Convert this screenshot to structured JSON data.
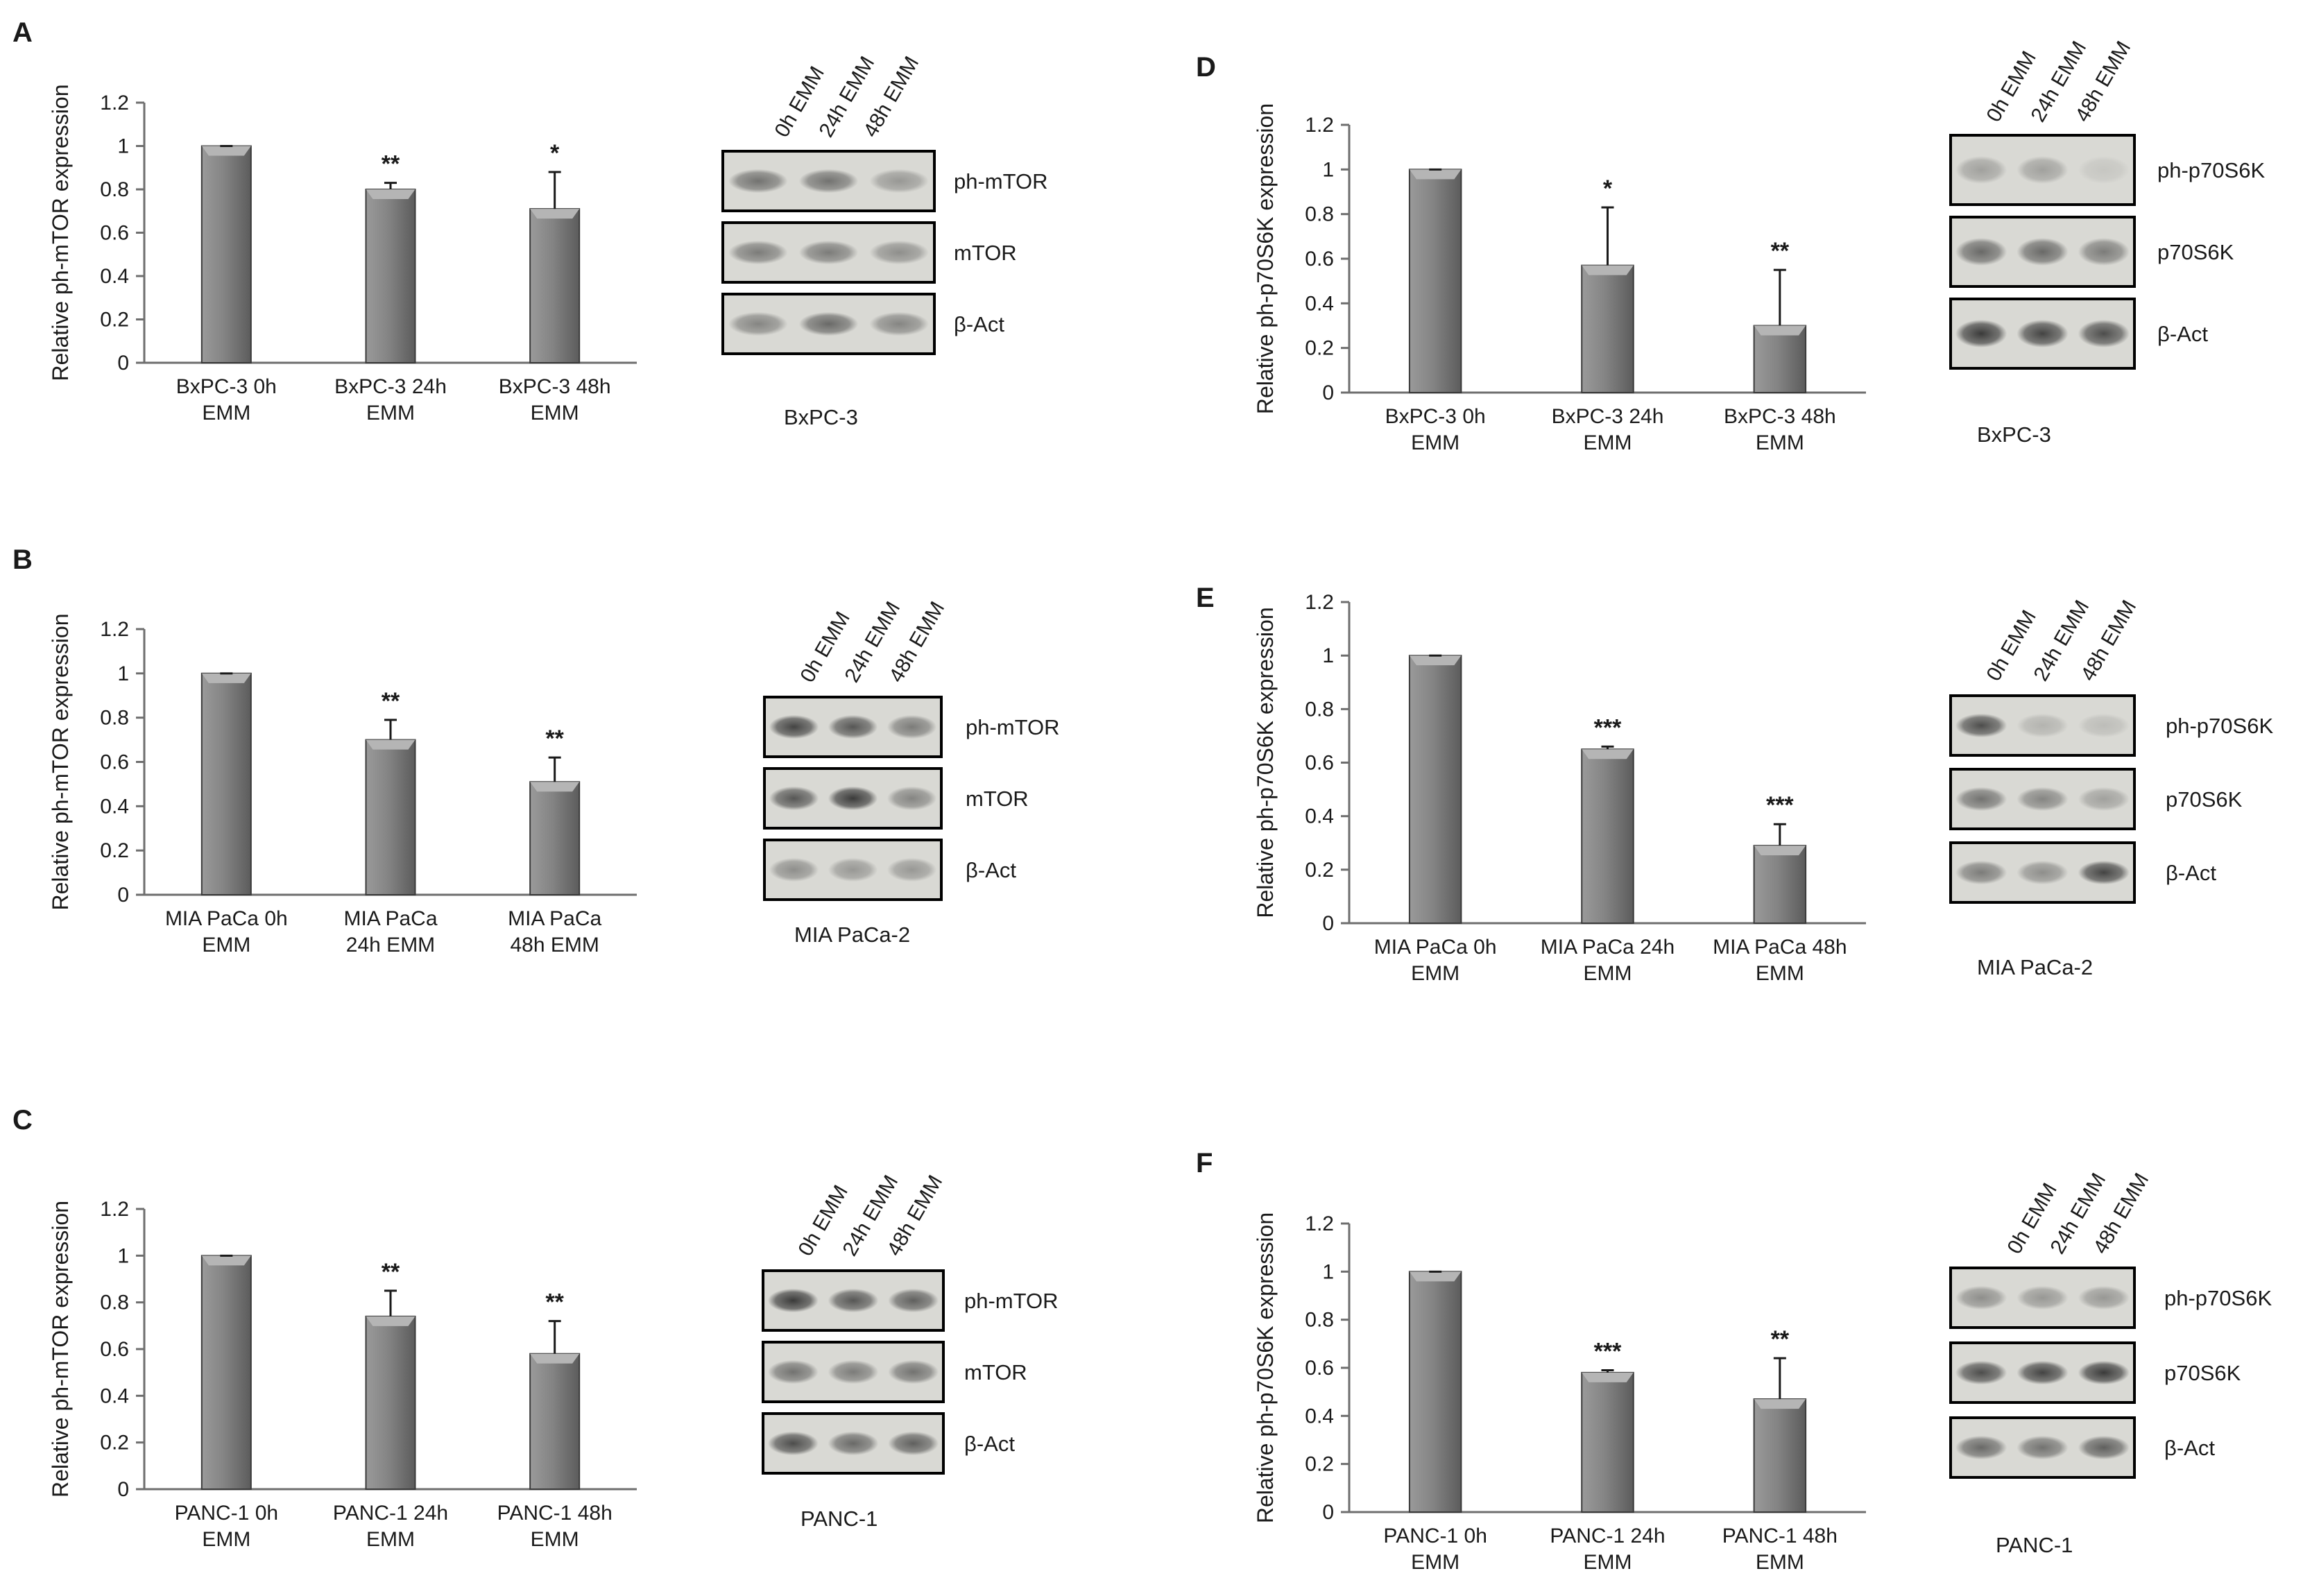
{
  "chart_data": [
    {
      "type": "bar",
      "panel": "A",
      "ylabel": "Relative ph-mTOR expression",
      "ylim": [
        0,
        1.2
      ],
      "yticks": [
        "0",
        "0.2",
        "0.4",
        "0.6",
        "0.8",
        "1",
        "1.2"
      ],
      "categories": [
        [
          "BxPC-3 0h",
          "EMM"
        ],
        [
          "BxPC-3 24h",
          "EMM"
        ],
        [
          "BxPC-3 48h",
          "EMM"
        ]
      ],
      "values": [
        1.0,
        0.8,
        0.71
      ],
      "errors": [
        0.0,
        0.03,
        0.17
      ],
      "significance": [
        "",
        "**",
        "*"
      ],
      "blot": {
        "lanes": [
          "0h EMM",
          "24h EMM",
          "48h EMM"
        ],
        "rows": [
          {
            "label": "ph-mTOR",
            "intensity": [
              0.55,
              0.55,
              0.35
            ]
          },
          {
            "label": "mTOR",
            "intensity": [
              0.5,
              0.5,
              0.4
            ]
          },
          {
            "label": "β-Act",
            "intensity": [
              0.45,
              0.6,
              0.45
            ]
          }
        ],
        "cell_line": "BxPC-3"
      }
    },
    {
      "type": "bar",
      "panel": "B",
      "ylabel": "Relative ph-mTOR expression",
      "ylim": [
        0,
        1.2
      ],
      "yticks": [
        "0",
        "0.2",
        "0.4",
        "0.6",
        "0.8",
        "1",
        "1.2"
      ],
      "categories": [
        [
          "MIA PaCa 0h",
          "EMM"
        ],
        [
          "MIA PaCa",
          "24h EMM"
        ],
        [
          "MIA PaCa",
          "48h EMM"
        ]
      ],
      "values": [
        1.0,
        0.7,
        0.51
      ],
      "errors": [
        0.0,
        0.09,
        0.11
      ],
      "significance": [
        "",
        "**",
        "**"
      ],
      "blot": {
        "lanes": [
          "0h EMM",
          "24h EMM",
          "48h EMM"
        ],
        "rows": [
          {
            "label": "ph-mTOR",
            "intensity": [
              0.8,
              0.7,
              0.5
            ]
          },
          {
            "label": "mTOR",
            "intensity": [
              0.7,
              0.85,
              0.45
            ]
          },
          {
            "label": "β-Act",
            "intensity": [
              0.4,
              0.35,
              0.35
            ]
          }
        ],
        "cell_line": "MIA PaCa-2"
      }
    },
    {
      "type": "bar",
      "panel": "C",
      "ylabel": "Relative ph-mTOR expression",
      "ylim": [
        0,
        1.2
      ],
      "yticks": [
        "0",
        "0.2",
        "0.4",
        "0.6",
        "0.8",
        "1",
        "1.2"
      ],
      "categories": [
        [
          "PANC-1 0h",
          "EMM"
        ],
        [
          "PANC-1 24h",
          "EMM"
        ],
        [
          "PANC-1 48h",
          "EMM"
        ]
      ],
      "values": [
        1.0,
        0.74,
        0.58
      ],
      "errors": [
        0.0,
        0.11,
        0.14
      ],
      "significance": [
        "",
        "**",
        "**"
      ],
      "blot": {
        "lanes": [
          "0h EMM",
          "24h EMM",
          "48h EMM"
        ],
        "rows": [
          {
            "label": "ph-mTOR",
            "intensity": [
              0.85,
              0.7,
              0.65
            ]
          },
          {
            "label": "mTOR",
            "intensity": [
              0.55,
              0.5,
              0.55
            ]
          },
          {
            "label": "β-Act",
            "intensity": [
              0.75,
              0.6,
              0.65
            ]
          }
        ],
        "cell_line": "PANC-1"
      }
    },
    {
      "type": "bar",
      "panel": "D",
      "ylabel": "Relative ph-p70S6K expression",
      "ylim": [
        0,
        1.2
      ],
      "yticks": [
        "0",
        "0.2",
        "0.4",
        "0.6",
        "0.8",
        "1",
        "1.2"
      ],
      "categories": [
        [
          "BxPC-3 0h",
          "EMM"
        ],
        [
          "BxPC-3 24h",
          "EMM"
        ],
        [
          "BxPC-3 48h",
          "EMM"
        ]
      ],
      "values": [
        1.0,
        0.57,
        0.3
      ],
      "errors": [
        0.0,
        0.26,
        0.25
      ],
      "significance": [
        "",
        "*",
        "**"
      ],
      "blot": {
        "lanes": [
          "0h EMM",
          "24h EMM",
          "48h EMM"
        ],
        "rows": [
          {
            "label": "ph-p70S6K",
            "intensity": [
              0.3,
              0.3,
              0.1
            ]
          },
          {
            "label": "p70S6K",
            "intensity": [
              0.6,
              0.6,
              0.5
            ]
          },
          {
            "label": "β-Act",
            "intensity": [
              0.85,
              0.8,
              0.75
            ]
          }
        ],
        "cell_line": "BxPC-3"
      }
    },
    {
      "type": "bar",
      "panel": "E",
      "ylabel": "Relative ph-p70S6K expression",
      "ylim": [
        0,
        1.2
      ],
      "yticks": [
        "0",
        "0.2",
        "0.4",
        "0.6",
        "0.8",
        "1",
        "1.2"
      ],
      "categories": [
        [
          "MIA PaCa 0h",
          "EMM"
        ],
        [
          "MIA PaCa 24h",
          "EMM"
        ],
        [
          "MIA PaCa 48h",
          "EMM"
        ]
      ],
      "values": [
        1.0,
        0.65,
        0.29
      ],
      "errors": [
        0.0,
        0.01,
        0.08
      ],
      "significance": [
        "",
        "***",
        "***"
      ],
      "blot": {
        "lanes": [
          "0h EMM",
          "24h EMM",
          "48h EMM"
        ],
        "rows": [
          {
            "label": "ph-p70S6K",
            "intensity": [
              0.75,
              0.2,
              0.15
            ]
          },
          {
            "label": "p70S6K",
            "intensity": [
              0.55,
              0.45,
              0.3
            ]
          },
          {
            "label": "β-Act",
            "intensity": [
              0.5,
              0.4,
              0.8
            ]
          }
        ],
        "cell_line": "MIA PaCa-2"
      }
    },
    {
      "type": "bar",
      "panel": "F",
      "ylabel": "Relative ph-p70S6K expression",
      "ylim": [
        0,
        1.2
      ],
      "yticks": [
        "0",
        "0.2",
        "0.4",
        "0.6",
        "0.8",
        "1",
        "1.2"
      ],
      "categories": [
        [
          "PANC-1 0h",
          "EMM"
        ],
        [
          "PANC-1 24h",
          "EMM"
        ],
        [
          "PANC-1 48h",
          "EMM"
        ]
      ],
      "values": [
        1.0,
        0.58,
        0.47
      ],
      "errors": [
        0.0,
        0.01,
        0.17
      ],
      "significance": [
        "",
        "***",
        "**"
      ],
      "blot": {
        "lanes": [
          "0h EMM",
          "24h EMM",
          "48h EMM"
        ],
        "rows": [
          {
            "label": "ph-p70S6K",
            "intensity": [
              0.4,
              0.35,
              0.35
            ]
          },
          {
            "label": "p70S6K",
            "intensity": [
              0.75,
              0.8,
              0.85
            ]
          },
          {
            "label": "β-Act",
            "intensity": [
              0.6,
              0.55,
              0.65
            ]
          }
        ],
        "cell_line": "PANC-1"
      }
    }
  ],
  "colors": {
    "bar_fill": "#858585",
    "bar_edge": "#3a3a3a",
    "bar_highlight": "#b5b5b5",
    "axis": "#6e6e6e",
    "text": "#1a1a1a",
    "blot_bg": "#d9d9d4",
    "band": "#2b2b2b"
  }
}
